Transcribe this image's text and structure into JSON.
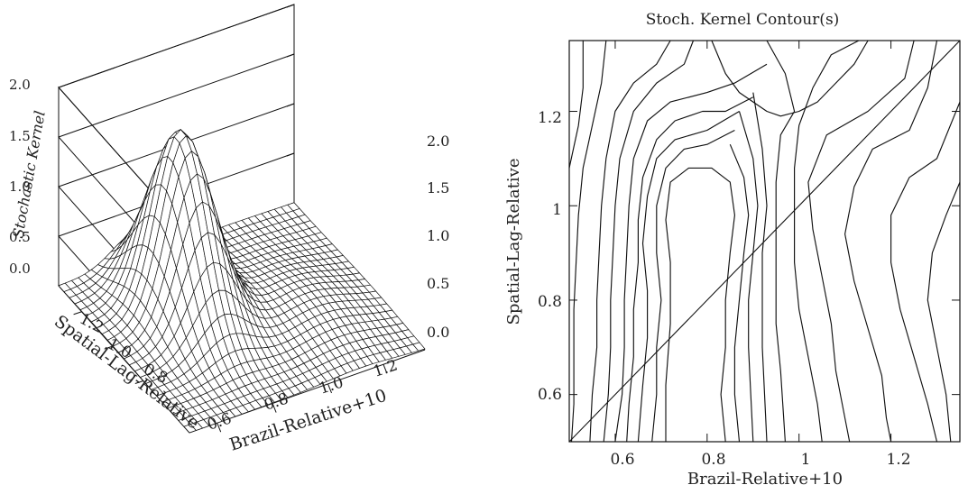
{
  "chart_data": [
    {
      "type": "surface",
      "zlabel": "Stochastic Kernel",
      "xlabel": "Brazil-Relative+10",
      "ylabel": "Spatial-Lag-Relative",
      "z_ticks_left": [
        "2.0",
        "1.5",
        "1.0",
        "0.5",
        "0.0"
      ],
      "z_ticks_right": [
        "2.0",
        "1.5",
        "1.0",
        "0.5",
        "0.0"
      ],
      "x_ticks": [
        "0.6",
        "0.8",
        "1.0",
        "1.2"
      ],
      "y_ticks": [
        "1.2",
        "1.0",
        "0.8"
      ],
      "zlim": [
        0,
        2.0
      ],
      "xlim": [
        0.5,
        1.35
      ],
      "ylim": [
        0.5,
        1.35
      ],
      "peak": {
        "x": 0.78,
        "y": 1.05,
        "z": 1.8
      },
      "grid": true
    },
    {
      "type": "contour",
      "title": "Stoch. Kernel Contour(s)",
      "xlabel": "Brazil-Relative+10",
      "ylabel": "Spatial-Lag-Relative",
      "x_ticks": [
        0.6,
        0.8,
        1.0,
        1.2
      ],
      "y_ticks": [
        0.6,
        0.8,
        1.0,
        1.2
      ],
      "xlim": [
        0.5,
        1.35
      ],
      "ylim": [
        0.5,
        1.35
      ],
      "reference_line": {
        "from": [
          0.5,
          0.5
        ],
        "to": [
          1.35,
          1.35
        ]
      },
      "contours": [
        [
          [
            0.81,
            1.35
          ],
          [
            0.84,
            1.28
          ],
          [
            0.87,
            1.24
          ],
          [
            0.93,
            1.2
          ],
          [
            0.96,
            1.19
          ],
          [
            1.0,
            1.2
          ],
          [
            1.04,
            1.22
          ],
          [
            1.08,
            1.26
          ],
          [
            1.12,
            1.3
          ],
          [
            1.15,
            1.35
          ]
        ],
        [
          [
            0.53,
            1.35
          ],
          [
            0.53,
            1.25
          ],
          [
            0.52,
            1.17
          ],
          [
            0.5,
            1.08
          ]
        ],
        [
          [
            0.58,
            1.35
          ],
          [
            0.57,
            1.26
          ],
          [
            0.55,
            1.17
          ],
          [
            0.53,
            1.08
          ],
          [
            0.52,
            0.98
          ],
          [
            0.515,
            0.88
          ],
          [
            0.51,
            0.78
          ],
          [
            0.51,
            0.68
          ],
          [
            0.51,
            0.58
          ],
          [
            0.505,
            0.5
          ]
        ],
        [
          [
            0.72,
            1.35
          ],
          [
            0.69,
            1.3
          ],
          [
            0.64,
            1.26
          ],
          [
            0.6,
            1.2
          ],
          [
            0.58,
            1.1
          ],
          [
            0.57,
            1.0
          ],
          [
            0.565,
            0.9
          ],
          [
            0.56,
            0.8
          ],
          [
            0.56,
            0.7
          ],
          [
            0.55,
            0.6
          ],
          [
            0.545,
            0.5
          ]
        ],
        [
          [
            0.77,
            1.35
          ],
          [
            0.75,
            1.3
          ],
          [
            0.69,
            1.26
          ],
          [
            0.64,
            1.2
          ],
          [
            0.61,
            1.1
          ],
          [
            0.6,
            1.0
          ],
          [
            0.595,
            0.9
          ],
          [
            0.59,
            0.8
          ],
          [
            0.59,
            0.7
          ],
          [
            0.585,
            0.6
          ],
          [
            0.575,
            0.5
          ]
        ],
        [
          [
            0.93,
            1.3
          ],
          [
            0.86,
            1.26
          ],
          [
            0.8,
            1.24
          ],
          [
            0.72,
            1.22
          ],
          [
            0.67,
            1.18
          ],
          [
            0.64,
            1.1
          ],
          [
            0.63,
            1.0
          ],
          [
            0.625,
            0.9
          ],
          [
            0.62,
            0.8
          ],
          [
            0.62,
            0.7
          ],
          [
            0.615,
            0.6
          ],
          [
            0.6,
            0.5
          ]
        ],
        [
          [
            0.9,
            1.23
          ],
          [
            0.84,
            1.2
          ],
          [
            0.79,
            1.2
          ],
          [
            0.73,
            1.18
          ],
          [
            0.69,
            1.14
          ],
          [
            0.66,
            1.06
          ],
          [
            0.65,
            0.97
          ],
          [
            0.65,
            0.88
          ],
          [
            0.64,
            0.78
          ],
          [
            0.64,
            0.68
          ],
          [
            0.63,
            0.58
          ],
          [
            0.625,
            0.5
          ]
        ],
        [
          [
            0.87,
            1.2
          ],
          [
            0.8,
            1.16
          ],
          [
            0.73,
            1.14
          ],
          [
            0.69,
            1.1
          ],
          [
            0.67,
            1.02
          ],
          [
            0.66,
            0.92
          ],
          [
            0.67,
            0.82
          ],
          [
            0.67,
            0.72
          ],
          [
            0.66,
            0.62
          ],
          [
            0.65,
            0.5
          ]
        ],
        [
          [
            0.86,
            1.16
          ],
          [
            0.8,
            1.13
          ],
          [
            0.75,
            1.12
          ],
          [
            0.71,
            1.08
          ],
          [
            0.69,
            1.0
          ],
          [
            0.69,
            0.9
          ],
          [
            0.7,
            0.8
          ],
          [
            0.69,
            0.7
          ],
          [
            0.69,
            0.6
          ],
          [
            0.68,
            0.5
          ]
        ],
        [
          [
            0.71,
            0.5
          ],
          [
            0.71,
            0.62
          ],
          [
            0.72,
            0.75
          ],
          [
            0.72,
            0.88
          ],
          [
            0.71,
            0.97
          ],
          [
            0.72,
            1.05
          ],
          [
            0.76,
            1.08
          ],
          [
            0.81,
            1.08
          ],
          [
            0.85,
            1.05
          ],
          [
            0.86,
            0.98
          ],
          [
            0.85,
            0.9
          ],
          [
            0.84,
            0.8
          ],
          [
            0.84,
            0.7
          ],
          [
            0.83,
            0.6
          ],
          [
            0.84,
            0.5
          ]
        ],
        [
          [
            0.85,
            1.13
          ],
          [
            0.88,
            1.06
          ],
          [
            0.89,
            0.98
          ],
          [
            0.88,
            0.9
          ],
          [
            0.87,
            0.8
          ],
          [
            0.86,
            0.7
          ],
          [
            0.86,
            0.6
          ],
          [
            0.87,
            0.5
          ]
        ],
        [
          [
            0.87,
            1.2
          ],
          [
            0.9,
            1.1
          ],
          [
            0.91,
            1.0
          ],
          [
            0.9,
            0.9
          ],
          [
            0.89,
            0.8
          ],
          [
            0.89,
            0.7
          ],
          [
            0.895,
            0.6
          ],
          [
            0.9,
            0.5
          ]
        ],
        [
          [
            0.9,
            1.24
          ],
          [
            0.92,
            1.12
          ],
          [
            0.93,
            1.0
          ],
          [
            0.92,
            0.9
          ],
          [
            0.92,
            0.8
          ],
          [
            0.92,
            0.7
          ],
          [
            0.925,
            0.6
          ],
          [
            0.93,
            0.5
          ]
        ],
        [
          [
            0.93,
            1.35
          ],
          [
            0.97,
            1.28
          ],
          [
            0.99,
            1.2
          ],
          [
            0.96,
            1.15
          ],
          [
            0.95,
            1.05
          ],
          [
            0.95,
            0.95
          ],
          [
            0.95,
            0.85
          ],
          [
            0.95,
            0.75
          ],
          [
            0.96,
            0.65
          ],
          [
            0.97,
            0.5
          ]
        ],
        [
          [
            1.13,
            1.35
          ],
          [
            1.07,
            1.32
          ],
          [
            1.03,
            1.25
          ],
          [
            1.0,
            1.17
          ],
          [
            0.99,
            1.08
          ],
          [
            0.99,
            0.98
          ],
          [
            0.99,
            0.88
          ],
          [
            1.0,
            0.78
          ],
          [
            1.02,
            0.68
          ],
          [
            1.04,
            0.58
          ],
          [
            1.05,
            0.5
          ]
        ],
        [
          [
            1.25,
            1.35
          ],
          [
            1.23,
            1.27
          ],
          [
            1.15,
            1.2
          ],
          [
            1.06,
            1.15
          ],
          [
            1.02,
            1.05
          ],
          [
            1.03,
            0.95
          ],
          [
            1.05,
            0.85
          ],
          [
            1.07,
            0.75
          ],
          [
            1.08,
            0.65
          ],
          [
            1.1,
            0.55
          ],
          [
            1.11,
            0.5
          ]
        ],
        [
          [
            1.3,
            1.35
          ],
          [
            1.28,
            1.25
          ],
          [
            1.24,
            1.16
          ],
          [
            1.16,
            1.12
          ],
          [
            1.12,
            1.04
          ],
          [
            1.1,
            0.94
          ],
          [
            1.12,
            0.84
          ],
          [
            1.15,
            0.74
          ],
          [
            1.18,
            0.64
          ],
          [
            1.19,
            0.55
          ],
          [
            1.2,
            0.5
          ]
        ],
        [
          [
            1.35,
            1.22
          ],
          [
            1.3,
            1.1
          ],
          [
            1.24,
            1.06
          ],
          [
            1.2,
            0.98
          ],
          [
            1.2,
            0.88
          ],
          [
            1.22,
            0.78
          ],
          [
            1.25,
            0.68
          ],
          [
            1.28,
            0.58
          ],
          [
            1.3,
            0.5
          ]
        ],
        [
          [
            1.35,
            1.05
          ],
          [
            1.32,
            0.98
          ],
          [
            1.29,
            0.9
          ],
          [
            1.28,
            0.8
          ],
          [
            1.3,
            0.7
          ],
          [
            1.32,
            0.6
          ],
          [
            1.33,
            0.5
          ]
        ]
      ]
    }
  ]
}
